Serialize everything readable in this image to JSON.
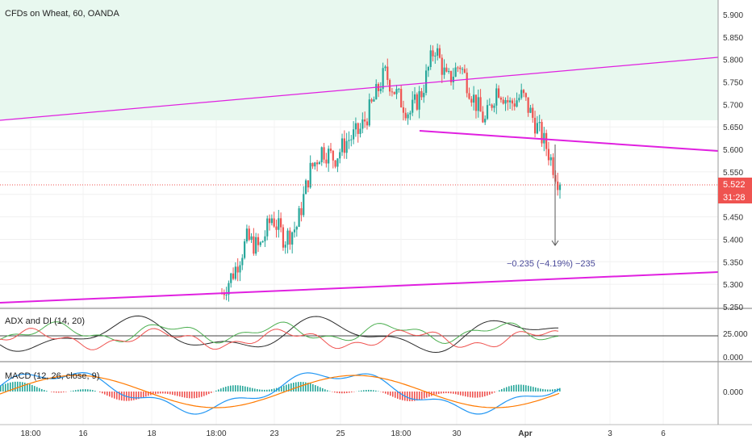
{
  "title": "CFDs on Wheat, 60, OANDA",
  "price_pane": {
    "y_ticks": [
      "5.900",
      "5.850",
      "5.800",
      "5.750",
      "5.700",
      "5.650",
      "5.600",
      "5.550",
      "5.500",
      "5.450",
      "5.400",
      "5.350",
      "5.300",
      "5.250"
    ],
    "last_price": "5.522",
    "countdown": "31:28",
    "measure_label": "−0.235 (−4.19%) −235",
    "colors": {
      "up": "#26a69a",
      "down": "#ef5350",
      "trendline": "#e020e0",
      "zone": "#e8f8ef",
      "measure": "#4a4a9a"
    }
  },
  "x_ticks": [
    "18:00",
    "16",
    "18",
    "18:00",
    "23",
    "25",
    "18:00",
    "30",
    "Apr",
    "3",
    "6"
  ],
  "adx_pane": {
    "title": "ADX and DI (14, 20)",
    "y_ticks": [
      "25.000",
      "0.000"
    ],
    "colors": {
      "adx": "#2b2b2b",
      "plus_di": "#4caf50",
      "minus_di": "#ef5350"
    }
  },
  "macd_pane": {
    "title": "MACD (12, 26, close, 9)",
    "y_ticks": [
      "0.000"
    ],
    "colors": {
      "macd": "#2196f3",
      "signal": "#ff7a00",
      "hist_up": "#26a69a",
      "hist_down": "#ef5350"
    }
  },
  "chart_data": {
    "type": "candlestick",
    "symbol": "CFDs on Wheat",
    "interval": "60",
    "source": "OANDA",
    "ylim": [
      5.25,
      5.9
    ],
    "price_path": [
      {
        "x": 0,
        "close": 5.28
      },
      {
        "x": 1,
        "close": 5.33
      },
      {
        "x": 2,
        "close": 5.4
      },
      {
        "x": 3,
        "close": 5.38
      },
      {
        "x": 4,
        "close": 5.45
      },
      {
        "x": 5,
        "close": 5.4
      },
      {
        "x": 6,
        "close": 5.43
      },
      {
        "x": 7,
        "close": 5.55
      },
      {
        "x": 8,
        "close": 5.6
      },
      {
        "x": 9,
        "close": 5.58
      },
      {
        "x": 10,
        "close": 5.62
      },
      {
        "x": 11,
        "close": 5.64
      },
      {
        "x": 12,
        "close": 5.7
      },
      {
        "x": 13,
        "close": 5.77
      },
      {
        "x": 14,
        "close": 5.72
      },
      {
        "x": 15,
        "close": 5.68
      },
      {
        "x": 16,
        "close": 5.73
      },
      {
        "x": 17,
        "close": 5.83
      },
      {
        "x": 18,
        "close": 5.75
      },
      {
        "x": 19,
        "close": 5.79
      },
      {
        "x": 20,
        "close": 5.72
      },
      {
        "x": 21,
        "close": 5.66
      },
      {
        "x": 22,
        "close": 5.74
      },
      {
        "x": 23,
        "close": 5.7
      },
      {
        "x": 24,
        "close": 5.72
      },
      {
        "x": 25,
        "close": 5.66
      },
      {
        "x": 26,
        "close": 5.6
      },
      {
        "x": 27,
        "close": 5.52
      }
    ],
    "last_price": 5.522,
    "measure": {
      "change": -0.235,
      "percent": -4.19,
      "ticks": -235
    },
    "trendlines": [
      "upper channel line",
      "neckline",
      "lower channel line"
    ]
  }
}
